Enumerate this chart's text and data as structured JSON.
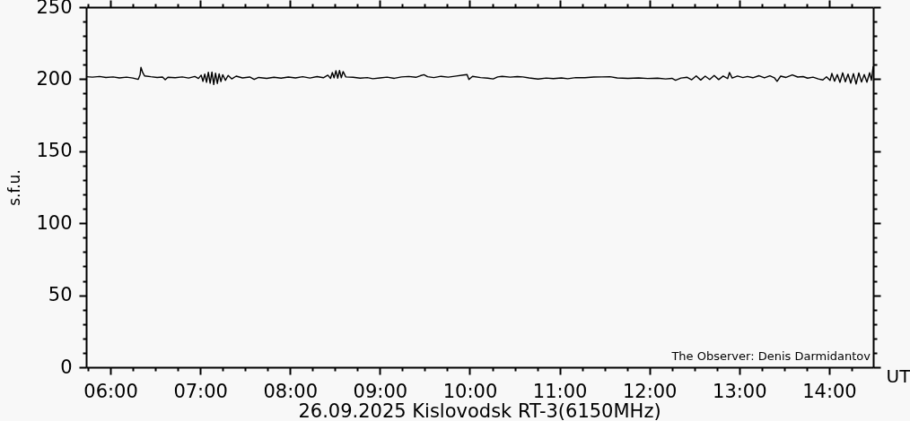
{
  "chart_data": {
    "type": "line",
    "title": "26.09.2025 Kislovodsk RT-3(6150MHz)",
    "xlabel": "UT",
    "ylabel": "s.f.u.",
    "annotations": [
      "The Observer: Denis Darmidantov"
    ],
    "color": "#000000",
    "x": [
      5.73,
      5.8,
      5.88,
      5.95,
      6.03,
      6.1,
      6.18,
      6.25,
      6.31,
      6.33,
      6.34,
      6.36,
      6.38,
      6.45,
      6.52,
      6.58,
      6.61,
      6.64,
      6.72,
      6.8,
      6.87,
      6.94,
      6.98,
      7.01,
      7.03,
      7.05,
      7.07,
      7.09,
      7.11,
      7.13,
      7.15,
      7.17,
      7.19,
      7.21,
      7.23,
      7.25,
      7.28,
      7.31,
      7.35,
      7.4,
      7.47,
      7.55,
      7.6,
      7.65,
      7.74,
      7.82,
      7.9,
      7.98,
      8.06,
      8.14,
      8.22,
      8.3,
      8.37,
      8.42,
      8.45,
      8.47,
      8.49,
      8.51,
      8.53,
      8.55,
      8.57,
      8.59,
      8.62,
      8.7,
      8.78,
      8.86,
      8.92,
      9.0,
      9.08,
      9.16,
      9.24,
      9.32,
      9.4,
      9.45,
      9.49,
      9.53,
      9.6,
      9.68,
      9.76,
      9.85,
      9.93,
      9.97,
      9.99,
      10.03,
      10.12,
      10.2,
      10.26,
      10.31,
      10.36,
      10.45,
      10.53,
      10.59,
      10.66,
      10.76,
      10.85,
      10.93,
      11.02,
      11.09,
      11.18,
      11.28,
      11.38,
      11.47,
      11.56,
      11.64,
      11.76,
      11.88,
      11.98,
      12.09,
      12.18,
      12.25,
      12.29,
      12.35,
      12.42,
      12.47,
      12.52,
      12.57,
      12.62,
      12.67,
      12.72,
      12.77,
      12.82,
      12.87,
      12.89,
      12.92,
      12.98,
      13.04,
      13.09,
      13.15,
      13.22,
      13.28,
      13.34,
      13.39,
      13.42,
      13.46,
      13.52,
      13.59,
      13.65,
      13.71,
      13.76,
      13.82,
      13.88,
      13.93,
      13.97,
      14.01,
      14.03,
      14.06,
      14.09,
      14.12,
      14.15,
      14.18,
      14.21,
      14.24,
      14.27,
      14.3,
      14.33,
      14.36,
      14.39,
      14.42,
      14.45,
      14.47,
      14.49
    ],
    "values": [
      201.7,
      201.4,
      201.9,
      201.2,
      201.6,
      200.9,
      201.4,
      200.8,
      199.9,
      203.0,
      208.2,
      204.5,
      202.3,
      201.7,
      201.2,
      201.5,
      199.6,
      201.3,
      201.0,
      201.6,
      200.8,
      201.9,
      200.5,
      202.8,
      198.5,
      203.6,
      197.8,
      204.8,
      197.2,
      205.0,
      196.3,
      204.2,
      197.0,
      203.7,
      198.3,
      203.1,
      199.2,
      202.6,
      200.2,
      202.1,
      200.9,
      201.5,
      199.8,
      201.2,
      200.6,
      201.3,
      200.7,
      201.5,
      200.9,
      201.7,
      200.8,
      201.8,
      201.0,
      202.8,
      200.6,
      204.6,
      200.9,
      205.9,
      200.7,
      206.1,
      201.0,
      205.3,
      201.6,
      201.3,
      200.7,
      201.1,
      200.3,
      200.9,
      201.4,
      200.6,
      201.6,
      201.9,
      201.3,
      202.4,
      203.1,
      201.7,
      201.1,
      202.0,
      201.4,
      202.2,
      202.9,
      203.2,
      199.8,
      202.0,
      201.1,
      200.7,
      200.2,
      201.6,
      202.0,
      201.4,
      201.8,
      201.6,
      200.9,
      200.1,
      200.8,
      200.4,
      200.9,
      200.3,
      201.1,
      201.0,
      201.5,
      201.6,
      201.7,
      200.9,
      200.6,
      200.9,
      200.5,
      200.7,
      200.2,
      200.6,
      199.3,
      200.8,
      201.3,
      199.6,
      202.3,
      199.4,
      202.1,
      199.8,
      202.6,
      199.7,
      202.2,
      200.4,
      204.7,
      200.8,
      202.2,
      201.1,
      201.9,
      201.0,
      202.4,
      200.9,
      202.3,
      201.0,
      198.5,
      202.1,
      201.2,
      203.0,
      201.5,
      201.8,
      200.7,
      201.4,
      200.2,
      199.5,
      201.6,
      199.1,
      204.0,
      198.6,
      203.2,
      197.8,
      204.4,
      198.2,
      203.5,
      197.3,
      203.9,
      196.7,
      204.3,
      198.0,
      203.2,
      197.9,
      204.5,
      199.3,
      208.9
    ],
    "xlim": [
      5.73,
      14.49
    ],
    "ylim": [
      0,
      250
    ],
    "xticks": [
      {
        "value": 5.75,
        "label": null
      },
      {
        "value": 6,
        "label": "06:00"
      },
      {
        "value": 6.25,
        "label": null
      },
      {
        "value": 6.5,
        "label": null
      },
      {
        "value": 6.75,
        "label": null
      },
      {
        "value": 7,
        "label": "07:00"
      },
      {
        "value": 7.25,
        "label": null
      },
      {
        "value": 7.5,
        "label": null
      },
      {
        "value": 7.75,
        "label": null
      },
      {
        "value": 8,
        "label": "08:00"
      },
      {
        "value": 8.25,
        "label": null
      },
      {
        "value": 8.5,
        "label": null
      },
      {
        "value": 8.75,
        "label": null
      },
      {
        "value": 9,
        "label": "09:00"
      },
      {
        "value": 9.25,
        "label": null
      },
      {
        "value": 9.5,
        "label": null
      },
      {
        "value": 9.75,
        "label": null
      },
      {
        "value": 10,
        "label": "10:00"
      },
      {
        "value": 10.25,
        "label": null
      },
      {
        "value": 10.5,
        "label": null
      },
      {
        "value": 10.75,
        "label": null
      },
      {
        "value": 11,
        "label": "11:00"
      },
      {
        "value": 11.25,
        "label": null
      },
      {
        "value": 11.5,
        "label": null
      },
      {
        "value": 11.75,
        "label": null
      },
      {
        "value": 12,
        "label": "12:00"
      },
      {
        "value": 12.25,
        "label": null
      },
      {
        "value": 12.5,
        "label": null
      },
      {
        "value": 12.75,
        "label": null
      },
      {
        "value": 13,
        "label": "13:00"
      },
      {
        "value": 13.25,
        "label": null
      },
      {
        "value": 13.5,
        "label": null
      },
      {
        "value": 13.75,
        "label": null
      },
      {
        "value": 14,
        "label": "14:00"
      },
      {
        "value": 14.25,
        "label": null
      }
    ],
    "yticks": [
      0,
      {
        "value": 10,
        "label": null
      },
      {
        "value": 20,
        "label": null
      },
      {
        "value": 30,
        "label": null
      },
      {
        "value": 40,
        "label": null
      },
      50,
      {
        "value": 60,
        "label": null
      },
      {
        "value": 70,
        "label": null
      },
      {
        "value": 80,
        "label": null
      },
      {
        "value": 90,
        "label": null
      },
      100,
      {
        "value": 110,
        "label": null
      },
      {
        "value": 120,
        "label": null
      },
      {
        "value": 130,
        "label": null
      },
      {
        "value": 140,
        "label": null
      },
      150,
      {
        "value": 160,
        "label": null
      },
      {
        "value": 170,
        "label": null
      },
      {
        "value": 180,
        "label": null
      },
      {
        "value": 190,
        "label": null
      },
      200,
      {
        "value": 210,
        "label": null
      },
      {
        "value": 220,
        "label": null
      },
      {
        "value": 230,
        "label": null
      },
      {
        "value": 240,
        "label": null
      },
      250
    ]
  }
}
